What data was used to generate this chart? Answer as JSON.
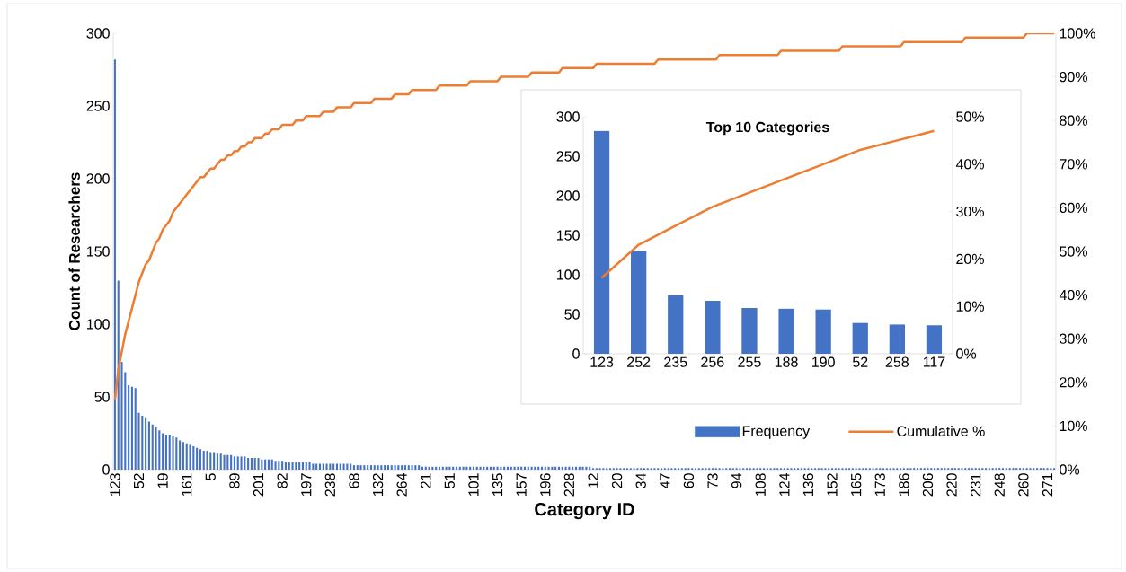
{
  "chart_data": [
    {
      "type": "bar",
      "xlabel": "Category ID",
      "ylabel": "Count of Researchers",
      "categories": [
        "123",
        null,
        null,
        null,
        null,
        null,
        null,
        "52",
        null,
        null,
        null,
        null,
        null,
        null,
        "19",
        null,
        null,
        null,
        null,
        null,
        null,
        "161",
        null,
        null,
        null,
        null,
        null,
        null,
        "5",
        null,
        null,
        null,
        null,
        null,
        null,
        "89",
        null,
        null,
        null,
        null,
        null,
        null,
        "201",
        null,
        null,
        null,
        null,
        null,
        null,
        "82",
        null,
        null,
        null,
        null,
        null,
        null,
        "197",
        null,
        null,
        null,
        null,
        null,
        null,
        "238",
        null,
        null,
        null,
        null,
        null,
        null,
        "68",
        null,
        null,
        null,
        null,
        null,
        null,
        "132",
        null,
        null,
        null,
        null,
        null,
        null,
        "264",
        null,
        null,
        null,
        null,
        null,
        null,
        "21",
        null,
        null,
        null,
        null,
        null,
        null,
        "51",
        null,
        null,
        null,
        null,
        null,
        null,
        "101",
        null,
        null,
        null,
        null,
        null,
        null,
        "135",
        null,
        null,
        null,
        null,
        null,
        null,
        "157",
        null,
        null,
        null,
        null,
        null,
        null,
        "196",
        null,
        null,
        null,
        null,
        null,
        null,
        "228",
        null,
        null,
        null,
        null,
        null,
        null,
        "12",
        null,
        null,
        null,
        null,
        null,
        null,
        "20",
        null,
        null,
        null,
        null,
        null,
        null,
        "34",
        null,
        null,
        null,
        null,
        null,
        null,
        "47",
        null,
        null,
        null,
        null,
        null,
        null,
        "60",
        null,
        null,
        null,
        null,
        null,
        null,
        "73",
        null,
        null,
        null,
        null,
        null,
        null,
        "94",
        null,
        null,
        null,
        null,
        null,
        null,
        "108",
        null,
        null,
        null,
        null,
        null,
        null,
        "124",
        null,
        null,
        null,
        null,
        null,
        null,
        "136",
        null,
        null,
        null,
        null,
        null,
        null,
        "152",
        null,
        null,
        null,
        null,
        null,
        null,
        "165",
        null,
        null,
        null,
        null,
        null,
        null,
        "173",
        null,
        null,
        null,
        null,
        null,
        null,
        "186",
        null,
        null,
        null,
        null,
        null,
        null,
        "206",
        null,
        null,
        null,
        null,
        null,
        null,
        "220",
        null,
        null,
        null,
        null,
        null,
        null,
        "231",
        null,
        null,
        null,
        null,
        null,
        null,
        "248",
        null,
        null,
        null,
        null,
        null,
        null,
        "260",
        null,
        null,
        null,
        null,
        null,
        null,
        "271",
        null,
        null
      ],
      "series": [
        {
          "name": "Frequency",
          "color": "#4472c4",
          "values": [
            282,
            130,
            74,
            67,
            58,
            57,
            56,
            39,
            37,
            36,
            33,
            31,
            29,
            27,
            25,
            24,
            24,
            23,
            22,
            20,
            19,
            18,
            17,
            16,
            15,
            14,
            13,
            13,
            12,
            12,
            11,
            11,
            10,
            10,
            10,
            9,
            9,
            9,
            9,
            8,
            8,
            8,
            8,
            7,
            7,
            7,
            7,
            6,
            6,
            6,
            5,
            5,
            5,
            5,
            5,
            5,
            5,
            5,
            4,
            4,
            4,
            4,
            4,
            4,
            4,
            4,
            4,
            4,
            4,
            4,
            3,
            3,
            3,
            3,
            3,
            3,
            3,
            3,
            3,
            3,
            3,
            3,
            3,
            3,
            3,
            3,
            3,
            3,
            3,
            3,
            2,
            2,
            2,
            2,
            2,
            2,
            2,
            2,
            2,
            2,
            2,
            2,
            2,
            2,
            2,
            2,
            2,
            2,
            2,
            2,
            2,
            2,
            2,
            2,
            2,
            2,
            2,
            2,
            2,
            2,
            2,
            2,
            2,
            2,
            2,
            2,
            2,
            2,
            2,
            2,
            2,
            2,
            2,
            2,
            2,
            2,
            2,
            2,
            2,
            2,
            1,
            1,
            1,
            1,
            1,
            1,
            1,
            1,
            1,
            1,
            1,
            1,
            1,
            1,
            1,
            1,
            1,
            1,
            1,
            1,
            1,
            1,
            1,
            1,
            1,
            1,
            1,
            1,
            1,
            1,
            1,
            1,
            1,
            1,
            1,
            1,
            1,
            1,
            1,
            1,
            1,
            1,
            1,
            1,
            1,
            1,
            1,
            1,
            1,
            1,
            1,
            1,
            1,
            1,
            1,
            1,
            1,
            1,
            1,
            1,
            1,
            1,
            1,
            1,
            1,
            1,
            1,
            1,
            1,
            1,
            1,
            1,
            1,
            1,
            1,
            1,
            1,
            1,
            1,
            1,
            1,
            1,
            1,
            1,
            1,
            1,
            1,
            1,
            1,
            1,
            1,
            1,
            1,
            1,
            1,
            1,
            1,
            1,
            1,
            1,
            1,
            1,
            1,
            1,
            1,
            1,
            1,
            1,
            1,
            1,
            1,
            1,
            1,
            1,
            1,
            1,
            1,
            1,
            1,
            1,
            1,
            1,
            1,
            1,
            1,
            1,
            1,
            1,
            1,
            1,
            1,
            1,
            1,
            1,
            1,
            1
          ]
        },
        {
          "name": "Cumulative %",
          "type": "line",
          "axis": "y2",
          "color": "#ed7d31",
          "values": [
            16,
            23,
            27,
            31,
            34,
            37,
            40,
            43,
            45,
            47,
            48,
            50,
            52,
            53,
            55,
            56,
            57,
            59,
            60,
            61,
            62,
            63,
            64,
            65,
            66,
            67,
            67,
            68,
            69,
            69,
            70,
            71,
            71,
            72,
            72,
            73,
            73,
            74,
            74,
            75,
            75,
            76,
            76,
            76,
            77,
            77,
            78,
            78,
            78,
            79,
            79,
            79,
            79,
            80,
            80,
            80,
            81,
            81,
            81,
            81,
            81,
            82,
            82,
            82,
            82,
            83,
            83,
            83,
            83,
            83,
            84,
            84,
            84,
            84,
            84,
            84,
            85,
            85,
            85,
            85,
            85,
            85,
            86,
            86,
            86,
            86,
            86,
            87,
            87,
            87,
            87,
            87,
            87,
            87,
            87,
            88,
            88,
            88,
            88,
            88,
            88,
            88,
            88,
            88,
            89,
            89,
            89,
            89,
            89,
            89,
            89,
            89,
            89,
            90,
            90,
            90,
            90,
            90,
            90,
            90,
            90,
            90,
            91,
            91,
            91,
            91,
            91,
            91,
            91,
            91,
            91,
            92,
            92,
            92,
            92,
            92,
            92,
            92,
            92,
            92,
            92,
            93,
            93,
            93,
            93,
            93,
            93,
            93,
            93,
            93,
            93,
            93,
            93,
            93,
            93,
            93,
            93,
            93,
            93,
            94,
            94,
            94,
            94,
            94,
            94,
            94,
            94,
            94,
            94,
            94,
            94,
            94,
            94,
            94,
            94,
            94,
            94,
            95,
            95,
            95,
            95,
            95,
            95,
            95,
            95,
            95,
            95,
            95,
            95,
            95,
            95,
            95,
            95,
            95,
            95,
            96,
            96,
            96,
            96,
            96,
            96,
            96,
            96,
            96,
            96,
            96,
            96,
            96,
            96,
            96,
            96,
            96,
            96,
            97,
            97,
            97,
            97,
            97,
            97,
            97,
            97,
            97,
            97,
            97,
            97,
            97,
            97,
            97,
            97,
            97,
            97,
            98,
            98,
            98,
            98,
            98,
            98,
            98,
            98,
            98,
            98,
            98,
            98,
            98,
            98,
            98,
            98,
            98,
            98,
            99,
            99,
            99,
            99,
            99,
            99,
            99,
            99,
            99,
            99,
            99,
            99,
            99,
            99,
            99,
            99,
            99,
            99,
            100,
            100,
            100,
            100,
            100,
            100,
            100,
            100,
            100
          ]
        }
      ],
      "ylim": [
        0,
        300
      ],
      "yticks": [
        0,
        50,
        100,
        150,
        200,
        250,
        300
      ],
      "y2lim": [
        0,
        100
      ],
      "y2ticks": [
        {
          "value": 0,
          "label": "0%"
        },
        {
          "value": 10,
          "label": "10%"
        },
        {
          "value": 20,
          "label": "20%"
        },
        {
          "value": 30,
          "label": "30%"
        },
        {
          "value": 40,
          "label": "40%"
        },
        {
          "value": 50,
          "label": "50%"
        },
        {
          "value": 60,
          "label": "60%"
        },
        {
          "value": 70,
          "label": "70%"
        },
        {
          "value": 80,
          "label": "80%"
        },
        {
          "value": 90,
          "label": "90%"
        },
        {
          "value": 100,
          "label": "100%"
        }
      ],
      "legend": "bottom right"
    },
    {
      "type": "bar",
      "title": "Top 10 Categories",
      "categories": [
        "123",
        "252",
        "235",
        "256",
        "255",
        "188",
        "190",
        "52",
        "258",
        "117"
      ],
      "series": [
        {
          "color": "#4472c4",
          "values": [
            282,
            130,
            74,
            67,
            58,
            57,
            56,
            39,
            37,
            36
          ]
        },
        {
          "type": "line",
          "axis": "y2",
          "color": "#ed7d31",
          "values": [
            16,
            23,
            27,
            31,
            34,
            37,
            40,
            43,
            45,
            47
          ]
        }
      ],
      "ylim": [
        0,
        300
      ],
      "yticks": [
        0,
        50,
        100,
        150,
        200,
        250,
        300
      ],
      "y2lim": [
        0,
        50
      ],
      "y2ticks": [
        {
          "value": 0,
          "label": "0%"
        },
        {
          "value": 10,
          "label": "10%"
        },
        {
          "value": 20,
          "label": "20%"
        },
        {
          "value": 30,
          "label": "30%"
        },
        {
          "value": 40,
          "label": "40%"
        },
        {
          "value": 50,
          "label": "50%"
        }
      ]
    }
  ]
}
